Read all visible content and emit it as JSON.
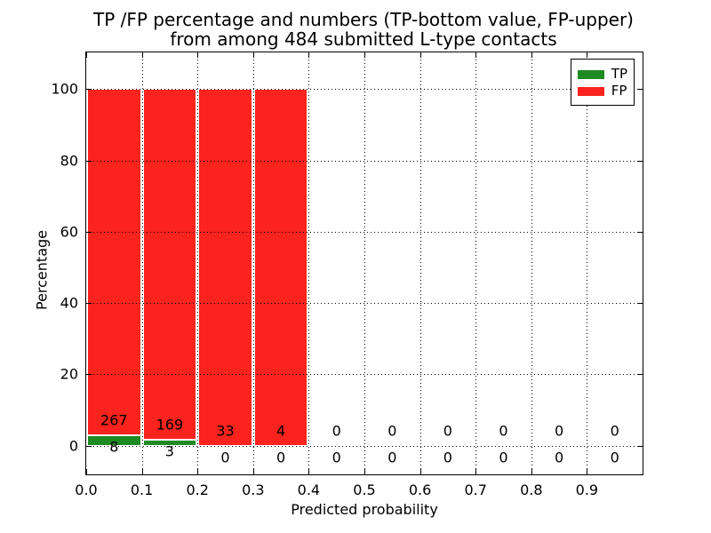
{
  "figure": {
    "title_line1": "TP /FP percentage and numbers (TP-bottom value, FP-upper)",
    "title_line2": "from among 484 submitted L-type contacts",
    "xlabel": "Predicted probability",
    "ylabel": "Percentage"
  },
  "chart_data": {
    "type": "bar",
    "stacked": true,
    "normalized": "each bin scaled to 100%, TP bottom segment, FP upper segment",
    "title": "TP /FP percentage and numbers (TP-bottom value, FP-upper) from among 484 submitted L-type contacts",
    "xlabel": "Predicted probability",
    "ylabel": "Percentage",
    "total_contacts": 484,
    "xlim": [
      0.0,
      1.0
    ],
    "ylim": [
      -8.05,
      110.3
    ],
    "grid": "dotted, drawn above bars",
    "legend_position": "upper right",
    "x_tick_labels": [
      "0.0",
      "0.1",
      "0.2",
      "0.3",
      "0.4",
      "0.5",
      "0.6",
      "0.7",
      "0.8",
      "0.9"
    ],
    "y_tick_values": [
      0,
      20,
      40,
      60,
      80,
      100
    ],
    "legend": [
      {
        "label": "TP",
        "color": "#1e8a22"
      },
      {
        "label": "FP",
        "color": "#fa231d"
      }
    ],
    "bins": [
      {
        "start": 0.0,
        "end": 0.1,
        "tp": 8,
        "fp": 267
      },
      {
        "start": 0.1,
        "end": 0.2,
        "tp": 3,
        "fp": 169
      },
      {
        "start": 0.2,
        "end": 0.3,
        "tp": 0,
        "fp": 33
      },
      {
        "start": 0.3,
        "end": 0.4,
        "tp": 0,
        "fp": 4
      },
      {
        "start": 0.4,
        "end": 0.5,
        "tp": 0,
        "fp": 0
      },
      {
        "start": 0.5,
        "end": 0.6,
        "tp": 0,
        "fp": 0
      },
      {
        "start": 0.6,
        "end": 0.7,
        "tp": 0,
        "fp": 0
      },
      {
        "start": 0.7,
        "end": 0.8,
        "tp": 0,
        "fp": 0
      },
      {
        "start": 0.8,
        "end": 0.9,
        "tp": 0,
        "fp": 0
      },
      {
        "start": 0.9,
        "end": 1.0,
        "tp": 0,
        "fp": 0
      }
    ]
  }
}
